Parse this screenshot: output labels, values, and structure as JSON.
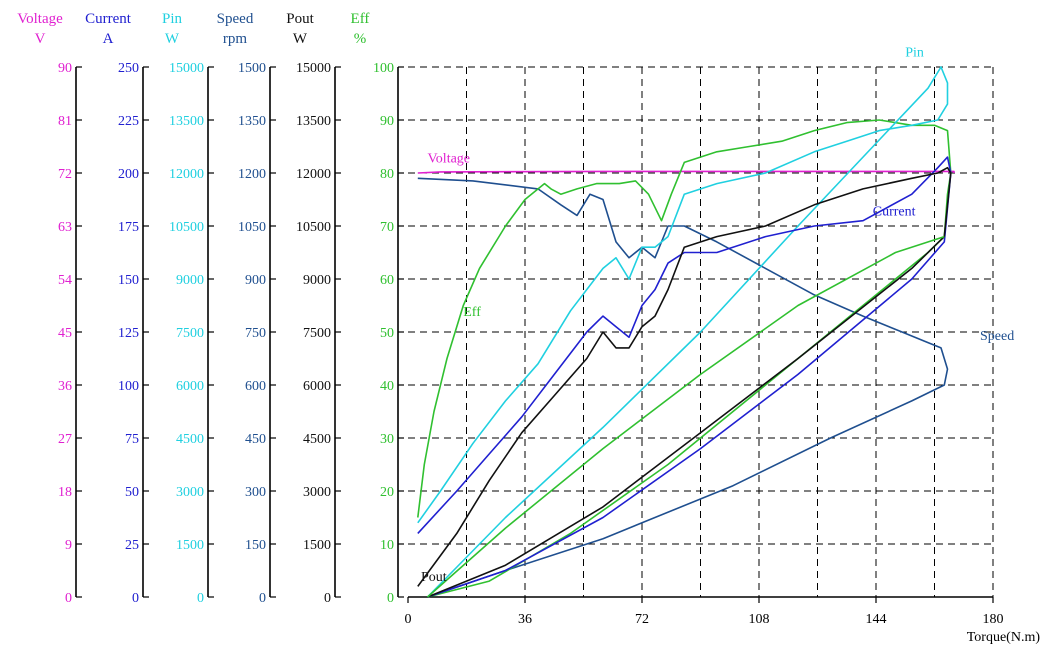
{
  "chart_data": {
    "type": "line",
    "xlabel": "Torque(N.m)",
    "x_ticks": [
      "0",
      "36",
      "72",
      "108",
      "144",
      "180"
    ],
    "xlim": [
      0,
      180
    ],
    "grid": true,
    "colors": {
      "voltage": "#e020d0",
      "current": "#2020d0",
      "pin": "#20d0e0",
      "speed": "#1f4f8f",
      "pout": "#111111",
      "eff": "#30c030"
    },
    "axes": [
      {
        "id": "voltage",
        "name": "Voltage",
        "unit": "V",
        "color": "#e020d0",
        "ylim": [
          0,
          90
        ],
        "ticks": [
          "0",
          "9",
          "18",
          "27",
          "36",
          "45",
          "54",
          "63",
          "72",
          "81",
          "90"
        ]
      },
      {
        "id": "current",
        "name": "Current",
        "unit": "A",
        "color": "#2020d0",
        "ylim": [
          0,
          250
        ],
        "ticks": [
          "0",
          "25",
          "50",
          "75",
          "100",
          "125",
          "150",
          "175",
          "200",
          "225",
          "250"
        ]
      },
      {
        "id": "pin",
        "name": "Pin",
        "unit": "W",
        "color": "#20d0e0",
        "ylim": [
          0,
          15000
        ],
        "ticks": [
          "0",
          "1500",
          "3000",
          "4500",
          "6000",
          "7500",
          "9000",
          "10500",
          "12000",
          "13500",
          "15000"
        ]
      },
      {
        "id": "speed",
        "name": "Speed",
        "unit": "rpm",
        "color": "#1f4f8f",
        "ylim": [
          0,
          1500
        ],
        "ticks": [
          "0",
          "150",
          "300",
          "450",
          "600",
          "750",
          "900",
          "1050",
          "1200",
          "1350",
          "1500"
        ]
      },
      {
        "id": "pout",
        "name": "Pout",
        "unit": "W",
        "color": "#111111",
        "ylim": [
          0,
          15000
        ],
        "ticks": [
          "0",
          "1500",
          "3000",
          "4500",
          "6000",
          "7500",
          "9000",
          "10500",
          "12000",
          "13500",
          "15000"
        ]
      },
      {
        "id": "eff",
        "name": "Eff",
        "unit": "%",
        "color": "#30c030",
        "ylim": [
          0,
          100
        ],
        "ticks": [
          "0",
          "10",
          "20",
          "30",
          "40",
          "50",
          "60",
          "70",
          "80",
          "90",
          "100"
        ]
      }
    ],
    "series": [
      {
        "id": "voltage",
        "name": "Voltage",
        "points": [
          [
            3,
            80
          ],
          [
            10,
            80.2
          ],
          [
            60,
            80.3
          ],
          [
            120,
            80.3
          ],
          [
            168,
            80.3
          ],
          [
            168,
            80
          ]
        ]
      },
      {
        "id": "speed",
        "name": "Speed",
        "points": [
          [
            3,
            79
          ],
          [
            20,
            78.5
          ],
          [
            40,
            77
          ],
          [
            47,
            74
          ],
          [
            52,
            72
          ],
          [
            56,
            76
          ],
          [
            60,
            75
          ],
          [
            64,
            67
          ],
          [
            68,
            64
          ],
          [
            72,
            66
          ],
          [
            76,
            64
          ],
          [
            80,
            70
          ],
          [
            85,
            70
          ],
          [
            95,
            67
          ],
          [
            110,
            62
          ],
          [
            125,
            57
          ],
          [
            140,
            53
          ],
          [
            152,
            50
          ],
          [
            160,
            48
          ],
          [
            164,
            47
          ],
          [
            166,
            43
          ],
          [
            165,
            40
          ],
          [
            155,
            37
          ],
          [
            130,
            30
          ],
          [
            100,
            21
          ],
          [
            60,
            11
          ],
          [
            30,
            5
          ],
          [
            6,
            0
          ]
        ]
      },
      {
        "id": "eff",
        "name": "Eff",
        "points": [
          [
            3,
            15
          ],
          [
            5,
            25
          ],
          [
            8,
            35
          ],
          [
            12,
            45
          ],
          [
            17,
            55
          ],
          [
            22,
            62
          ],
          [
            30,
            70
          ],
          [
            36,
            75
          ],
          [
            42,
            78
          ],
          [
            44,
            77
          ],
          [
            47,
            76
          ],
          [
            52,
            77
          ],
          [
            58,
            78
          ],
          [
            65,
            78
          ],
          [
            70,
            78.5
          ],
          [
            74,
            76
          ],
          [
            78,
            71
          ],
          [
            81,
            76
          ],
          [
            85,
            82
          ],
          [
            95,
            84
          ],
          [
            105,
            85
          ],
          [
            115,
            86
          ],
          [
            125,
            88
          ],
          [
            135,
            89.5
          ],
          [
            145,
            90
          ],
          [
            155,
            89
          ],
          [
            162,
            89
          ],
          [
            166,
            88
          ],
          [
            167,
            80
          ],
          [
            166,
            76
          ],
          [
            165,
            68
          ],
          [
            160,
            65
          ],
          [
            140,
            55
          ],
          [
            110,
            40
          ],
          [
            80,
            25
          ],
          [
            50,
            12
          ],
          [
            25,
            3
          ],
          [
            6,
            0
          ]
        ]
      },
      {
        "id": "pin",
        "name": "Pin",
        "points": [
          [
            3,
            14
          ],
          [
            10,
            20
          ],
          [
            20,
            29
          ],
          [
            30,
            37
          ],
          [
            40,
            44
          ],
          [
            50,
            54
          ],
          [
            60,
            62
          ],
          [
            64,
            64
          ],
          [
            68,
            60
          ],
          [
            72,
            66
          ],
          [
            76,
            66
          ],
          [
            80,
            68
          ],
          [
            85,
            76
          ],
          [
            95,
            78
          ],
          [
            110,
            80
          ],
          [
            125,
            84
          ],
          [
            135,
            86
          ],
          [
            145,
            88
          ],
          [
            155,
            89
          ],
          [
            163,
            90
          ],
          [
            166,
            93
          ],
          [
            166,
            97
          ],
          [
            164,
            100
          ],
          [
            160,
            96
          ],
          [
            120,
            70
          ],
          [
            90,
            50
          ],
          [
            60,
            32
          ],
          [
            30,
            15
          ],
          [
            6,
            0
          ]
        ]
      },
      {
        "id": "current",
        "name": "Current",
        "points": [
          [
            3,
            12
          ],
          [
            15,
            20
          ],
          [
            25,
            27
          ],
          [
            35,
            34
          ],
          [
            45,
            42
          ],
          [
            55,
            50
          ],
          [
            60,
            53
          ],
          [
            64,
            51
          ],
          [
            68,
            49
          ],
          [
            72,
            55
          ],
          [
            76,
            58
          ],
          [
            80,
            63
          ],
          [
            85,
            65
          ],
          [
            95,
            65
          ],
          [
            110,
            68
          ],
          [
            125,
            70
          ],
          [
            140,
            71
          ],
          [
            155,
            76
          ],
          [
            163,
            81
          ],
          [
            166,
            83
          ],
          [
            167,
            80
          ],
          [
            165,
            67
          ],
          [
            155,
            60
          ],
          [
            120,
            42
          ],
          [
            90,
            28
          ],
          [
            60,
            15
          ],
          [
            30,
            5
          ],
          [
            6,
            0
          ]
        ]
      },
      {
        "id": "pout",
        "name": "Pout",
        "points": [
          [
            3,
            2
          ],
          [
            15,
            12
          ],
          [
            25,
            22
          ],
          [
            35,
            31
          ],
          [
            45,
            38
          ],
          [
            55,
            45
          ],
          [
            60,
            50
          ],
          [
            64,
            47
          ],
          [
            68,
            47
          ],
          [
            72,
            51
          ],
          [
            76,
            53
          ],
          [
            80,
            58
          ],
          [
            85,
            66
          ],
          [
            95,
            68
          ],
          [
            110,
            70
          ],
          [
            125,
            74
          ],
          [
            140,
            77
          ],
          [
            155,
            79
          ],
          [
            163,
            80
          ],
          [
            166,
            81
          ],
          [
            167,
            80
          ],
          [
            165,
            68
          ],
          [
            155,
            62
          ],
          [
            120,
            45
          ],
          [
            90,
            31
          ],
          [
            60,
            17
          ],
          [
            30,
            6
          ],
          [
            6,
            0
          ]
        ]
      },
      {
        "id": "green2",
        "name": "",
        "points": [
          [
            6,
            0
          ],
          [
            30,
            13
          ],
          [
            60,
            28
          ],
          [
            90,
            42
          ],
          [
            120,
            55
          ],
          [
            150,
            65
          ],
          [
            165,
            68
          ]
        ]
      }
    ]
  }
}
